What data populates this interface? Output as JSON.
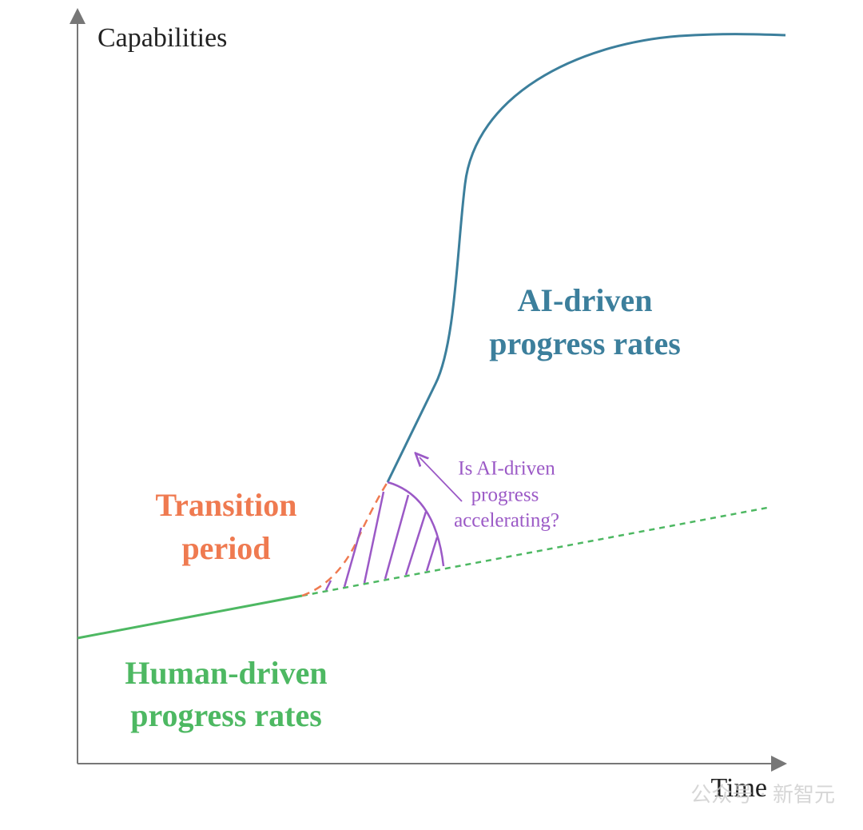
{
  "axes": {
    "y_label": "Capabilities",
    "x_label": "Time"
  },
  "labels": {
    "ai_driven": [
      "AI-driven",
      "progress rates"
    ],
    "transition": [
      "Transition",
      "period"
    ],
    "human_driven": [
      "Human-driven",
      "progress rates"
    ],
    "question": [
      "Is AI-driven",
      "progress",
      "accelerating?"
    ]
  },
  "watermark": "公众号 · 新智元"
}
